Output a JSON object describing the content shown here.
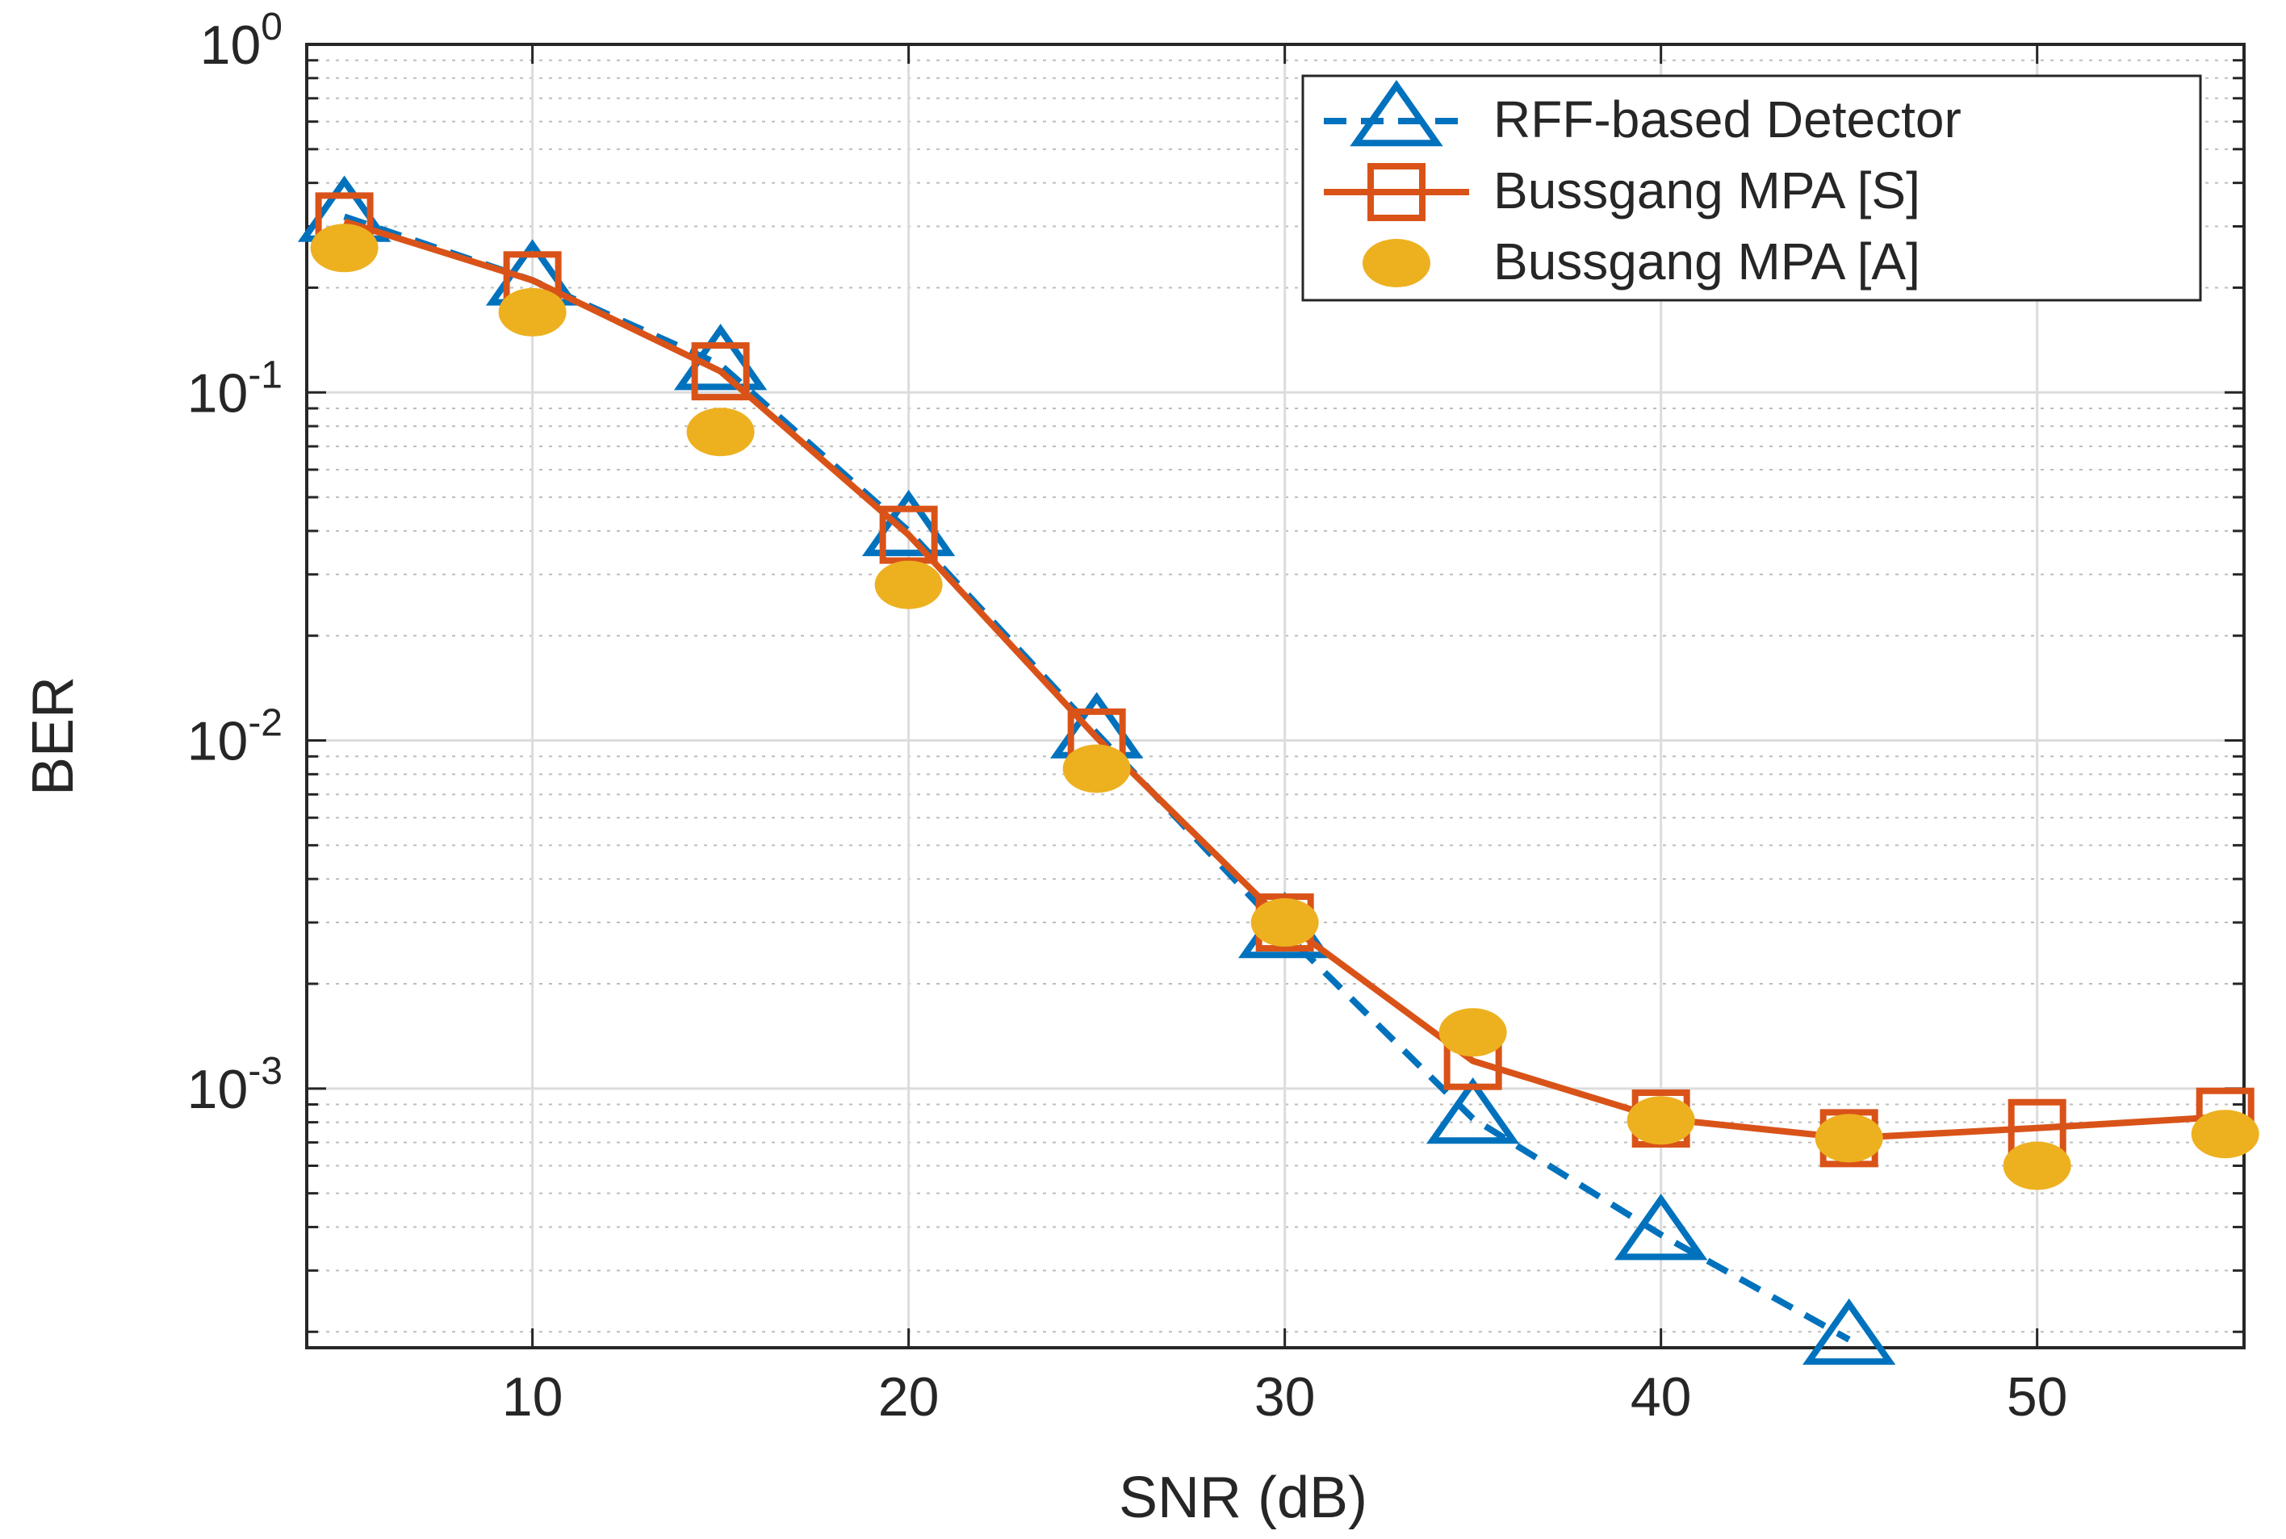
{
  "chart_data": {
    "type": "line",
    "title": "",
    "xlabel": "SNR (dB)",
    "ylabel": "BER",
    "yscale": "log",
    "xlim": [
      4,
      55.5
    ],
    "ylim": [
      0.00018,
      1
    ],
    "grid": true,
    "minor_grid": true,
    "legend_position": "top-right",
    "x_ticks": [
      10,
      20,
      30,
      40,
      50
    ],
    "y_ticks": [
      {
        "value": 1,
        "base": "10",
        "exp": "0"
      },
      {
        "value": 0.1,
        "base": "10",
        "exp": "-1"
      },
      {
        "value": 0.01,
        "base": "10",
        "exp": "-2"
      },
      {
        "value": 0.001,
        "base": "10",
        "exp": "-3"
      }
    ],
    "series": [
      {
        "name": "RFF-based Detector",
        "color": "#0072BD",
        "line": "dashed",
        "marker": "triangle",
        "x": [
          5,
          10,
          15,
          20,
          25,
          30,
          35,
          40,
          45
        ],
        "values": [
          0.32,
          0.21,
          0.12,
          0.04,
          0.0105,
          0.0028,
          0.00082,
          0.00038,
          0.00019
        ]
      },
      {
        "name": "Bussgang MPA [S]",
        "color": "#D95319",
        "line": "solid",
        "marker": "square",
        "x": [
          5,
          10,
          15,
          20,
          25,
          30,
          35,
          40,
          45,
          50,
          55
        ],
        "values": [
          0.31,
          0.21,
          0.115,
          0.039,
          0.0102,
          0.003,
          0.0012,
          0.00082,
          0.00072,
          0.00077,
          0.00083
        ]
      },
      {
        "name": "Bussgang MPA [A]",
        "color": "#EDB120",
        "line": "none",
        "marker": "circle",
        "x": [
          5,
          10,
          15,
          20,
          25,
          30,
          35,
          40,
          45,
          50,
          55
        ],
        "values": [
          0.26,
          0.17,
          0.077,
          0.028,
          0.0083,
          0.003,
          0.00145,
          0.00081,
          0.00072,
          0.0006,
          0.00074
        ]
      }
    ]
  }
}
